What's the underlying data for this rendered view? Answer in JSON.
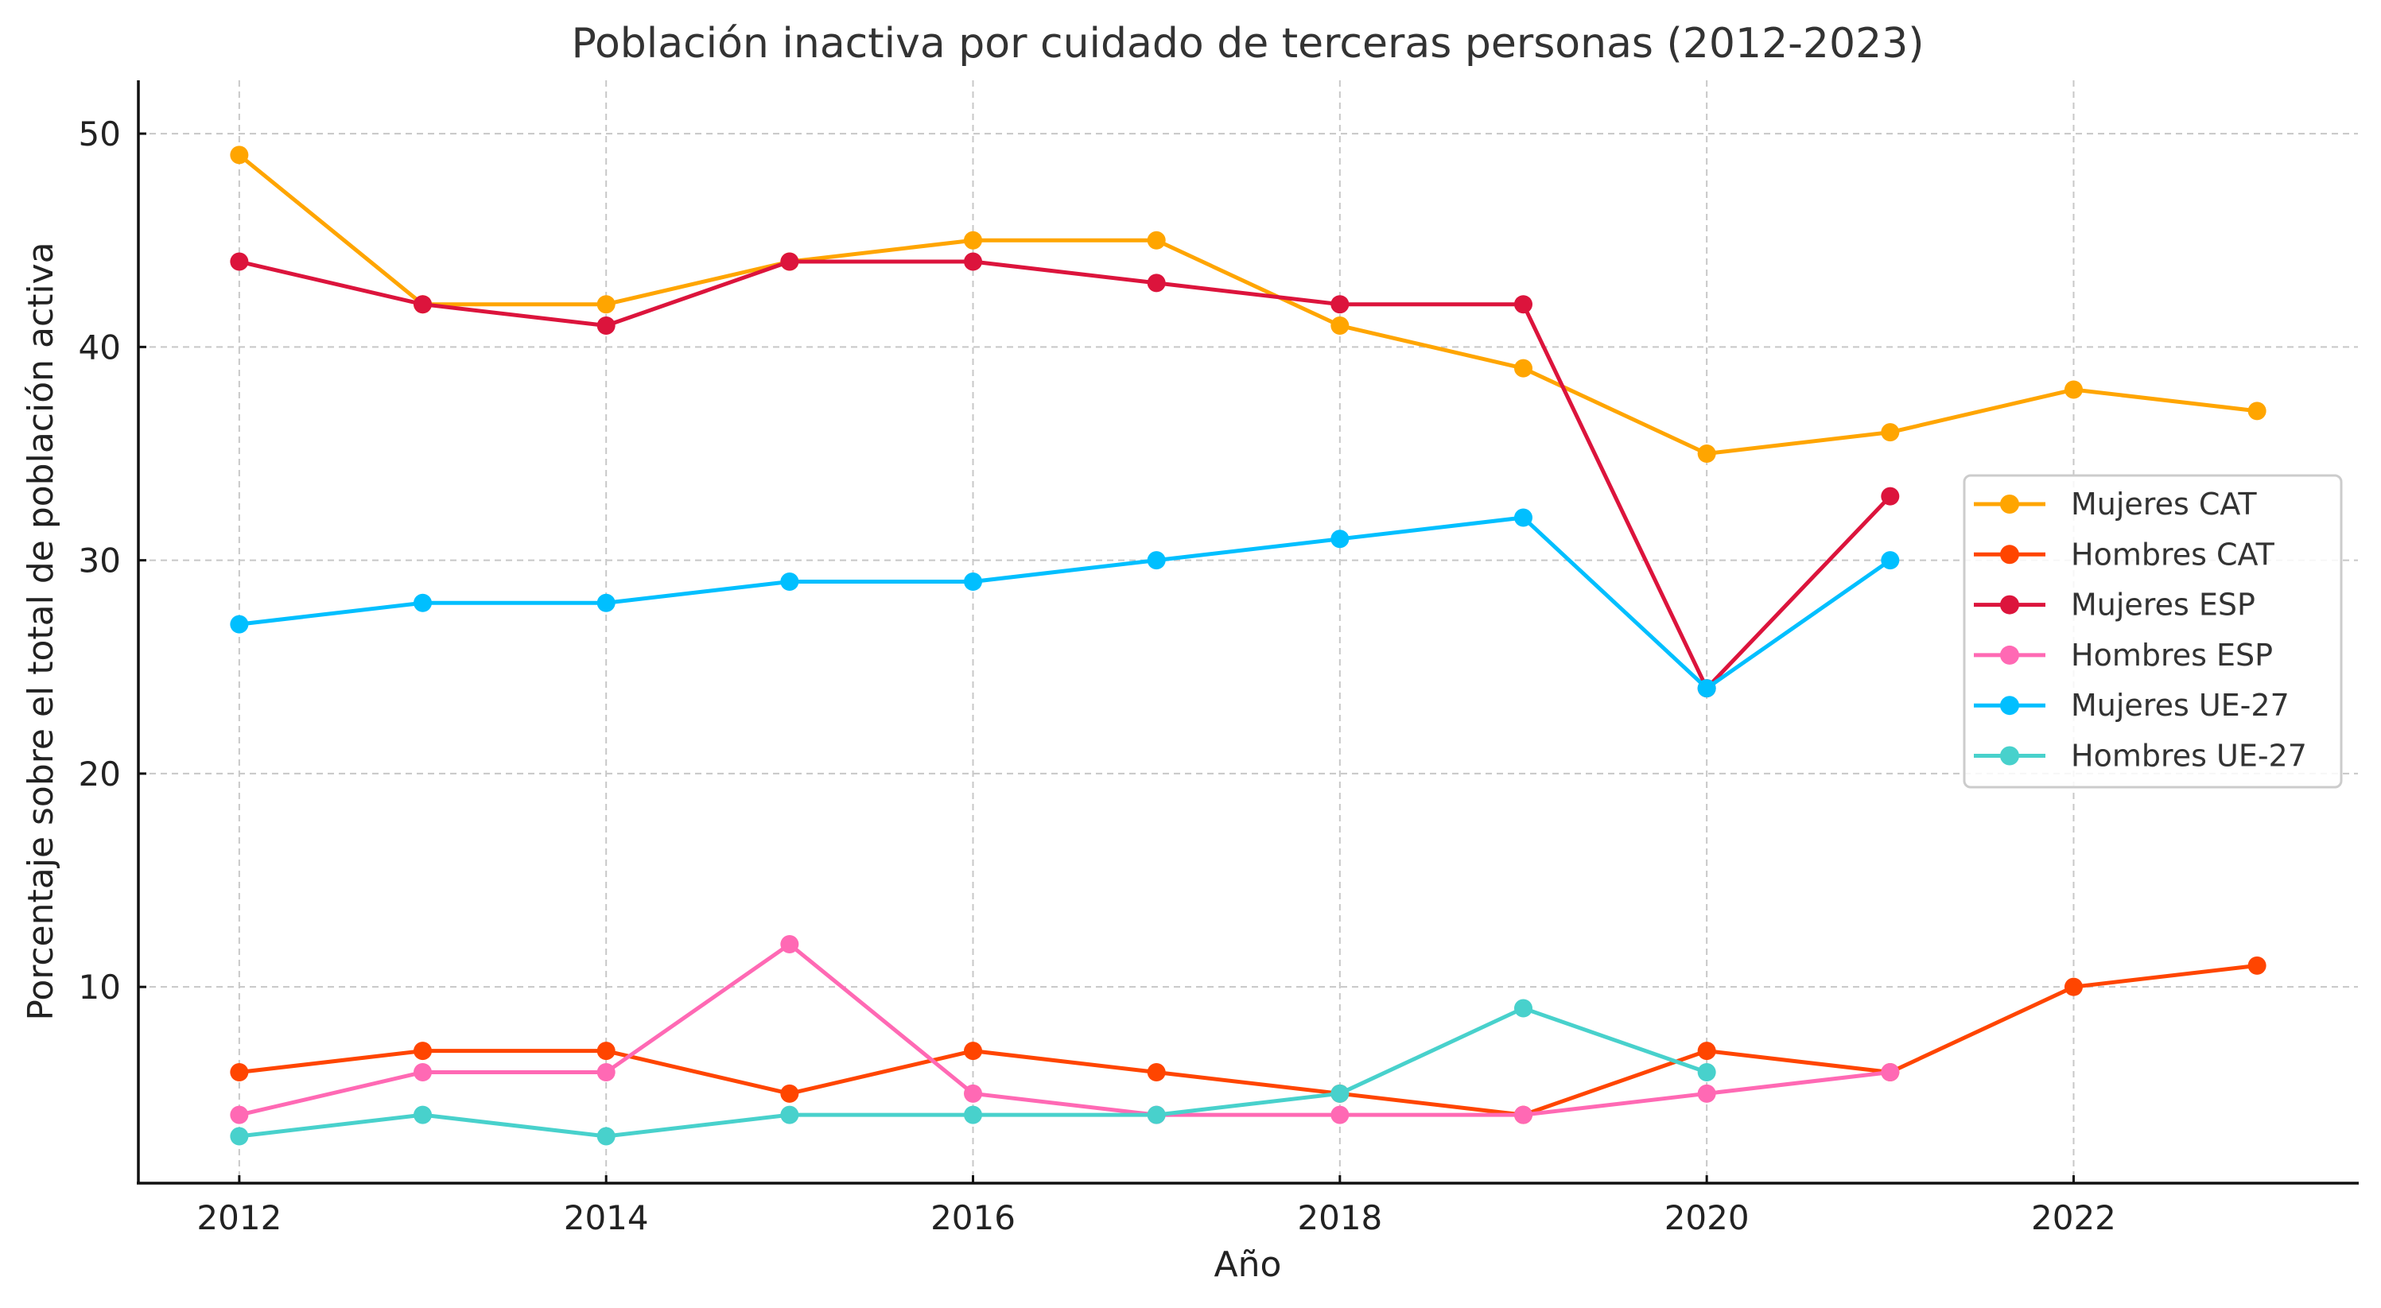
{
  "chart_data": {
    "type": "line",
    "title": "Población inactiva por cuidado de terceras personas (2012-2023)",
    "xlabel": "Año",
    "ylabel": "Porcentaje sobre el total de población activa",
    "x": [
      2012,
      2013,
      2014,
      2015,
      2016,
      2017,
      2018,
      2019,
      2020,
      2021,
      2022,
      2023
    ],
    "xlim": [
      2011.45,
      2023.55
    ],
    "ylim": [
      0.8,
      52.5
    ],
    "xticks": [
      2012,
      2014,
      2016,
      2018,
      2020,
      2022
    ],
    "yticks": [
      10,
      20,
      30,
      40,
      50
    ],
    "grid": true,
    "legend_position": "center-right",
    "series": [
      {
        "name": "Mujeres CAT",
        "color": "#FFA500",
        "values": [
          49,
          42,
          42,
          44,
          45,
          45,
          41,
          39,
          35,
          36,
          38,
          37
        ]
      },
      {
        "name": "Hombres CAT",
        "color": "#FF4500",
        "values": [
          6,
          7,
          7,
          5,
          7,
          6,
          5,
          4,
          7,
          6,
          10,
          11
        ]
      },
      {
        "name": "Mujeres ESP",
        "color": "#DC143C",
        "values": [
          44,
          42,
          41,
          44,
          44,
          43,
          42,
          42,
          24,
          33,
          null,
          null
        ]
      },
      {
        "name": "Hombres ESP",
        "color": "#FF69B4",
        "values": [
          4,
          6,
          6,
          12,
          5,
          4,
          4,
          4,
          5,
          6,
          null,
          null
        ]
      },
      {
        "name": "Mujeres UE-27",
        "color": "#00BFFF",
        "values": [
          27,
          28,
          28,
          29,
          29,
          30,
          31,
          32,
          24,
          30,
          null,
          null
        ]
      },
      {
        "name": "Hombres UE-27",
        "color": "#48D1CC",
        "values": [
          3,
          4,
          3,
          4,
          4,
          4,
          5,
          9,
          6,
          null,
          null,
          null
        ]
      }
    ]
  }
}
